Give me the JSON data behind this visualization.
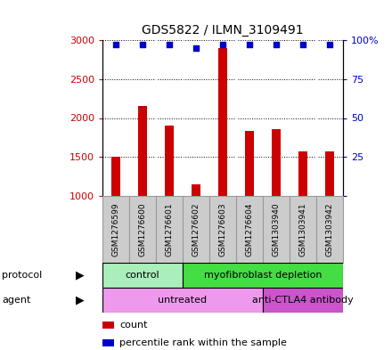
{
  "title": "GDS5822 / ILMN_3109491",
  "samples": [
    "GSM1276599",
    "GSM1276600",
    "GSM1276601",
    "GSM1276602",
    "GSM1276603",
    "GSM1276604",
    "GSM1303940",
    "GSM1303941",
    "GSM1303942"
  ],
  "counts": [
    1500,
    2150,
    1900,
    1150,
    2900,
    1830,
    1860,
    1570,
    1570
  ],
  "percentiles": [
    97,
    97,
    97,
    95,
    97,
    97,
    97,
    97,
    97
  ],
  "ylim_left": [
    1000,
    3000
  ],
  "ylim_right": [
    0,
    100
  ],
  "yticks_left": [
    1000,
    1500,
    2000,
    2500,
    3000
  ],
  "yticks_right": [
    0,
    25,
    50,
    75,
    100
  ],
  "bar_color": "#cc0000",
  "dot_color": "#0000cc",
  "bar_width": 0.35,
  "protocol_groups": [
    {
      "label": "control",
      "start": 0,
      "end": 3,
      "color": "#aaeebb"
    },
    {
      "label": "myofibroblast depletion",
      "start": 3,
      "end": 9,
      "color": "#44dd44"
    }
  ],
  "agent_groups": [
    {
      "label": "untreated",
      "start": 0,
      "end": 6,
      "color": "#ee99ee"
    },
    {
      "label": "anti-CTLA4 antibody",
      "start": 6,
      "end": 9,
      "color": "#cc55cc"
    }
  ],
  "legend_items": [
    {
      "label": "count",
      "color": "#cc0000"
    },
    {
      "label": "percentile rank within the sample",
      "color": "#0000cc"
    }
  ],
  "sample_box_color": "#cccccc",
  "sample_box_edge": "#999999"
}
